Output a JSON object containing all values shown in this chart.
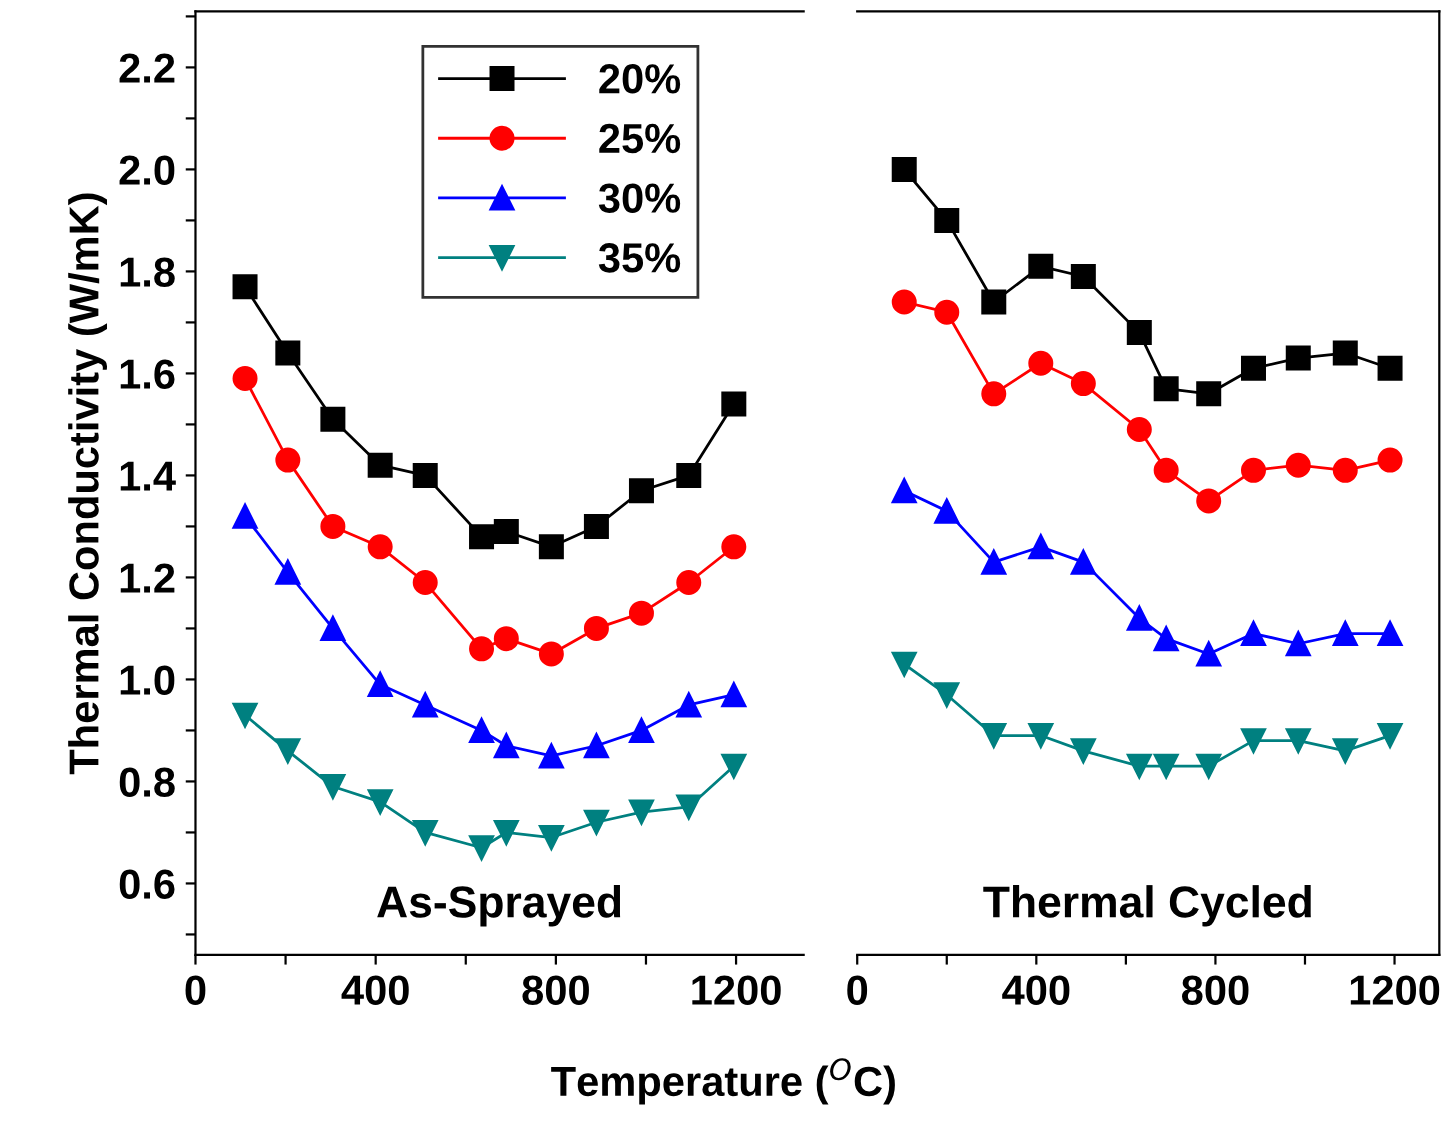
{
  "chart_data": [
    {
      "type": "line",
      "xlabel": "Temperature ($^{O}$C)",
      "ylabel": "Thermal Conductivity (W/mK)",
      "annotations": [
        "As-Sprayed"
      ],
      "legend": "top",
      "grid": false,
      "line_style": "solid",
      "xlim": [
        0,
        1350
      ],
      "xticks": [
        0,
        {
          "value": 200,
          "label": null
        },
        400,
        {
          "value": 600,
          "label": null
        },
        800,
        {
          "value": 1000,
          "label": null
        },
        1200
      ],
      "ylim": [
        0.46,
        2.31
      ],
      "yticks": [
        {
          "value": 0.5,
          "label": null
        },
        {
          "value": 0.6,
          "label": "0.6"
        },
        {
          "value": 0.7,
          "label": null
        },
        {
          "value": 0.8,
          "label": "0.8"
        },
        {
          "value": 0.9,
          "label": null
        },
        {
          "value": 1.0,
          "label": "1.0"
        },
        {
          "value": 1.1,
          "label": null
        },
        {
          "value": 1.2,
          "label": "1.2"
        },
        {
          "value": 1.3,
          "label": null
        },
        {
          "value": 1.4,
          "label": "1.4"
        },
        {
          "value": 1.5,
          "label": null
        },
        {
          "value": 1.6,
          "label": "1.6"
        },
        {
          "value": 1.7,
          "label": null
        },
        {
          "value": 1.8,
          "label": "1.8"
        },
        {
          "value": 1.9,
          "label": null
        },
        {
          "value": 2.0,
          "label": "2.0"
        },
        {
          "value": 2.1,
          "label": null
        },
        {
          "value": 2.2,
          "label": "2.2"
        },
        {
          "value": 2.3,
          "label": null
        }
      ],
      "x": [
        110,
        205,
        305,
        410,
        510,
        635,
        690,
        790,
        890,
        990,
        1095,
        1195
      ],
      "series": [
        {
          "name": "20%",
          "color": "#000000",
          "marker": "square",
          "values": [
            1.77,
            1.64,
            1.51,
            1.42,
            1.4,
            1.28,
            1.29,
            1.26,
            1.3,
            1.37,
            1.4,
            1.54
          ]
        },
        {
          "name": "25%",
          "color": "#ff0000",
          "marker": "circle",
          "values": [
            1.59,
            1.43,
            1.3,
            1.26,
            1.19,
            1.06,
            1.08,
            1.05,
            1.1,
            1.13,
            1.19,
            1.26
          ]
        },
        {
          "name": "30%",
          "color": "#0000ff",
          "marker": "triangle",
          "values": [
            1.32,
            1.21,
            1.1,
            0.99,
            0.95,
            0.9,
            0.87,
            0.85,
            0.87,
            0.9,
            0.95,
            0.97
          ]
        },
        {
          "name": "35%",
          "color": "#008080",
          "marker": "triangle_down",
          "values": [
            0.93,
            0.86,
            0.79,
            0.76,
            0.7,
            0.67,
            0.7,
            0.69,
            0.72,
            0.74,
            0.75,
            0.83
          ]
        }
      ]
    },
    {
      "type": "line",
      "annotations": [
        "Thermal Cycled"
      ],
      "tick_labels": "x",
      "grid": false,
      "line_style": "solid",
      "xlim": [
        0,
        1300
      ],
      "xticks": [
        0,
        {
          "value": 200,
          "label": null
        },
        400,
        {
          "value": 600,
          "label": null
        },
        800,
        {
          "value": 1000,
          "label": null
        },
        1200
      ],
      "ylim": [
        0.46,
        2.31
      ],
      "x": [
        105,
        200,
        305,
        410,
        505,
        630,
        690,
        785,
        885,
        985,
        1090,
        1190
      ],
      "series": [
        {
          "color": "#000000",
          "marker": "square",
          "values": [
            2.0,
            1.9,
            1.74,
            1.81,
            1.79,
            1.68,
            1.57,
            1.56,
            1.61,
            1.63,
            1.64,
            1.61
          ]
        },
        {
          "color": "#ff0000",
          "marker": "circle",
          "values": [
            1.74,
            1.72,
            1.56,
            1.62,
            1.58,
            1.49,
            1.41,
            1.35,
            1.41,
            1.42,
            1.41,
            1.43
          ]
        },
        {
          "color": "#0000ff",
          "marker": "triangle",
          "values": [
            1.37,
            1.33,
            1.23,
            1.26,
            1.23,
            1.12,
            1.08,
            1.05,
            1.09,
            1.07,
            1.09,
            1.09
          ]
        },
        {
          "color": "#008080",
          "marker": "triangle_down",
          "values": [
            1.03,
            0.97,
            0.89,
            0.89,
            0.86,
            0.83,
            0.83,
            0.83,
            0.88,
            0.88,
            0.86,
            0.89
          ]
        }
      ]
    }
  ]
}
